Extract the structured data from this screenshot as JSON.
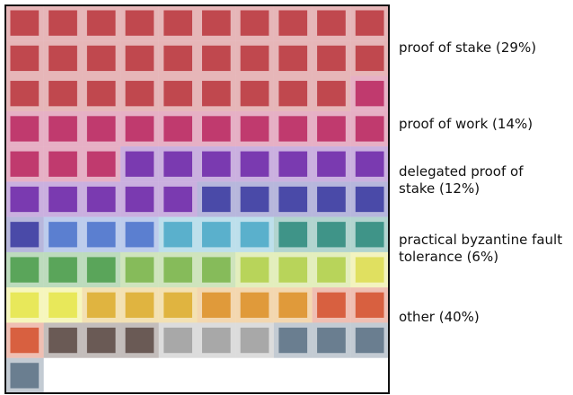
{
  "chart_data": {
    "type": "waffle",
    "columns": 10,
    "series": [
      {
        "name": "proof of stake (29%)",
        "value": 29,
        "color": "#c0484e"
      },
      {
        "name": "proof of work (14%)",
        "value": 14,
        "color": "#c03a6e"
      },
      {
        "name": "delegated proof of stake (12%)",
        "value": 12,
        "color": "#7a3ab0"
      },
      {
        "name": "practical byzantine fault tolerance (6%)",
        "value": 6,
        "color": "#4a4aa8"
      },
      {
        "name": "other (40%)",
        "value": 40,
        "color": "#6a7e90",
        "colors": [
          "#5b7fd0",
          "#5b7fd0",
          "#5b7fd0",
          "#5ab0cc",
          "#5ab0cc",
          "#5ab0cc",
          "#3f9488",
          "#3f9488",
          "#3f9488",
          "#5aa55a",
          "#5aa55a",
          "#5aa55a",
          "#86bb5a",
          "#86bb5a",
          "#86bb5a",
          "#b8d45a",
          "#b8d45a",
          "#b8d45a",
          "#e0e060",
          "#e8e85a",
          "#e8e85a",
          "#e0b440",
          "#e0b440",
          "#e0b440",
          "#e09a3a",
          "#e09a3a",
          "#e09a3a",
          "#d86040",
          "#d86040",
          "#d86040",
          "#6a5a55",
          "#6a5a55",
          "#6a5a55",
          "#a8a8a8",
          "#a8a8a8",
          "#a8a8a8",
          "#6a7e90",
          "#6a7e90",
          "#6a7e90",
          "#6a7e90"
        ]
      }
    ]
  }
}
